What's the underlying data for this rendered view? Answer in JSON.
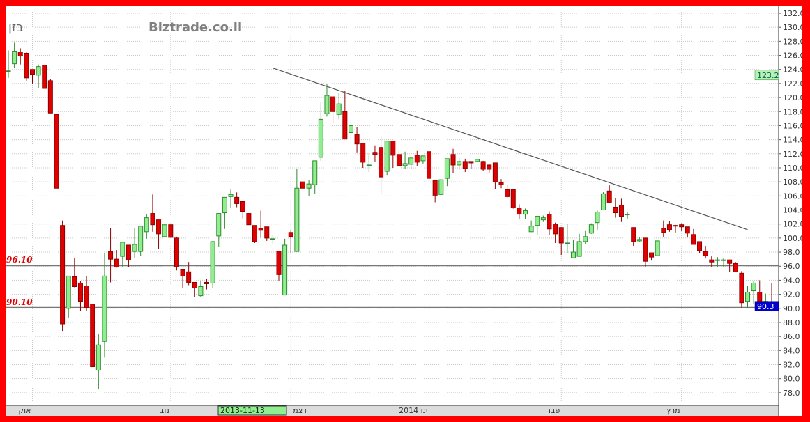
{
  "header": {
    "symbol": "בזן",
    "brand": "Biztrade.co.il"
  },
  "colors": {
    "up_fill": "#90ee90",
    "up_stroke": "#2e8b2e",
    "down_fill": "#e00000",
    "down_stroke": "#8b0000",
    "frame": "#ff0000",
    "last_price_tag": "#0000cc",
    "high_tag": "#b8f0b8",
    "level_label": "#e00000"
  },
  "chart_data": {
    "type": "candlestick",
    "ylim": [
      77,
      132.5
    ],
    "y_ticks": [
      "78.0",
      "80.0",
      "82.0",
      "84.0",
      "86.0",
      "88.0",
      "90.0",
      "92.0",
      "94.0",
      "96.0",
      "98.0",
      "100.0",
      "102.0",
      "104.0",
      "106.0",
      "108.0",
      "110.0",
      "112.0",
      "114.0",
      "116.0",
      "118.0",
      "120.0",
      "122.0",
      "124.0",
      "126.0",
      "128.0",
      "130.0",
      "132.0"
    ],
    "x_labels": [
      {
        "label": "אוק",
        "index": 4
      },
      {
        "label": "נוב",
        "index": 27
      },
      {
        "label": "דצמ",
        "index": 47
      },
      {
        "label": "2014 ינו",
        "index": 70
      },
      {
        "label": "פבר",
        "index": 92
      },
      {
        "label": "מרץ",
        "index": 112
      }
    ],
    "cursor_date": "2013-11-13",
    "levels": [
      {
        "value": 96.1,
        "label": "96.10"
      },
      {
        "value": 90.1,
        "label": "90.10"
      }
    ],
    "trendline": [
      {
        "index": 44,
        "value": 124.2
      },
      {
        "index": 123,
        "value": 101.2
      }
    ],
    "tags": [
      {
        "value": 123.2,
        "label": "123.2",
        "kind": "high"
      },
      {
        "value": 90.3,
        "label": "90.3",
        "kind": "last"
      }
    ],
    "candles": [
      [
        123.8,
        126.7,
        122.8,
        123.8
      ],
      [
        124.8,
        127.8,
        124.2,
        126.6
      ],
      [
        126.5,
        127.0,
        124.7,
        125.9
      ],
      [
        126.3,
        126.5,
        122.3,
        122.8
      ],
      [
        124.0,
        124.0,
        122.0,
        123.3
      ],
      [
        123.2,
        124.7,
        121.4,
        124.4
      ],
      [
        124.6,
        124.6,
        121.3,
        121.3
      ],
      [
        122.4,
        122.6,
        117.8,
        117.8
      ],
      [
        117.6,
        117.6,
        107.1,
        107.1
      ],
      [
        101.8,
        102.5,
        86.7,
        87.8
      ],
      [
        90.0,
        94.6,
        88.7,
        94.6
      ],
      [
        94.5,
        97.2,
        93.0,
        93.1
      ],
      [
        93.6,
        93.9,
        89.6,
        91.0
      ],
      [
        93.2,
        94.6,
        89.6,
        90.1
      ],
      [
        90.6,
        90.6,
        81.7,
        81.7
      ],
      [
        81.2,
        86.3,
        78.5,
        84.8
      ],
      [
        85.3,
        97.9,
        83.0,
        94.6
      ],
      [
        98.1,
        101.4,
        93.7,
        97.0
      ],
      [
        97.0,
        98.3,
        95.8,
        95.9
      ],
      [
        97.4,
        99.5,
        95.9,
        99.4
      ],
      [
        99.0,
        99.0,
        95.9,
        96.9
      ],
      [
        98.1,
        101.4,
        97.2,
        99.1
      ],
      [
        98.1,
        101.7,
        97.5,
        101.7
      ],
      [
        100.9,
        103.4,
        99.9,
        102.9
      ],
      [
        103.5,
        106.2,
        100.9,
        101.9
      ],
      [
        102.6,
        102.6,
        98.4,
        100.6
      ],
      [
        100.2,
        101.9,
        100.2,
        101.9
      ],
      [
        101.9,
        101.9,
        100.1,
        100.1
      ],
      [
        100.0,
        100.2,
        95.4,
        95.9
      ],
      [
        95.5,
        95.5,
        92.9,
        94.6
      ],
      [
        95.2,
        96.6,
        93.3,
        93.7
      ],
      [
        93.7,
        93.7,
        91.6,
        92.9
      ],
      [
        91.8,
        93.9,
        91.6,
        93.1
      ],
      [
        93.7,
        94.2,
        92.7,
        93.5
      ],
      [
        93.6,
        99.5,
        92.9,
        99.5
      ],
      [
        100.3,
        103.5,
        98.8,
        103.5
      ],
      [
        103.6,
        105.8,
        101.3,
        105.8
      ],
      [
        105.9,
        106.9,
        104.3,
        106.2
      ],
      [
        105.8,
        106.5,
        104.4,
        104.9
      ],
      [
        105.2,
        105.2,
        102.8,
        103.8
      ],
      [
        103.5,
        103.5,
        101.9,
        101.9
      ],
      [
        101.8,
        101.8,
        99.3,
        99.5
      ],
      [
        101.4,
        103.9,
        100.0,
        101.1
      ],
      [
        101.6,
        101.6,
        99.6,
        100.0
      ],
      [
        99.9,
        100.4,
        99.2,
        99.9
      ],
      [
        98.1,
        98.1,
        93.9,
        94.8
      ],
      [
        91.9,
        99.9,
        91.9,
        99.0
      ],
      [
        100.8,
        101.1,
        97.9,
        100.2
      ],
      [
        98.1,
        109.8,
        98.1,
        107.1
      ],
      [
        108.0,
        108.5,
        105.5,
        107.1
      ],
      [
        107.1,
        108.3,
        106.0,
        107.7
      ],
      [
        107.6,
        111.0,
        106.3,
        111.0
      ],
      [
        111.5,
        119.3,
        111.0,
        116.9
      ],
      [
        117.7,
        122.0,
        117.3,
        120.3
      ],
      [
        120.1,
        120.1,
        116.3,
        118.0
      ],
      [
        117.6,
        120.7,
        116.9,
        119.1
      ],
      [
        118.0,
        121.0,
        114.1,
        114.1
      ],
      [
        115.0,
        116.9,
        113.9,
        116.0
      ],
      [
        114.7,
        115.8,
        112.2,
        113.4
      ],
      [
        113.5,
        113.5,
        110.0,
        110.8
      ],
      [
        110.3,
        112.2,
        109.4,
        110.4
      ],
      [
        112.2,
        113.2,
        110.9,
        111.9
      ],
      [
        112.9,
        114.4,
        106.3,
        108.7
      ],
      [
        109.5,
        113.8,
        108.9,
        113.8
      ],
      [
        113.8,
        113.8,
        110.0,
        111.8
      ],
      [
        111.9,
        112.6,
        110.3,
        110.3
      ],
      [
        110.3,
        112.3,
        109.9,
        110.6
      ],
      [
        110.5,
        111.4,
        109.9,
        111.4
      ],
      [
        111.8,
        112.4,
        110.2,
        110.8
      ],
      [
        111.0,
        111.7,
        110.6,
        111.7
      ],
      [
        112.3,
        112.3,
        107.9,
        108.5
      ],
      [
        108.2,
        108.2,
        105.1,
        106.1
      ],
      [
        106.2,
        108.3,
        106.2,
        108.3
      ],
      [
        108.5,
        111.3,
        107.4,
        111.3
      ],
      [
        111.9,
        112.7,
        109.3,
        110.4
      ],
      [
        110.4,
        111.4,
        109.7,
        110.9
      ],
      [
        110.9,
        111.3,
        109.4,
        109.9
      ],
      [
        110.9,
        110.9,
        109.9,
        110.7
      ],
      [
        110.9,
        111.4,
        110.2,
        111.2
      ],
      [
        110.9,
        111.0,
        109.6,
        109.8
      ],
      [
        110.4,
        110.6,
        109.2,
        109.8
      ],
      [
        110.7,
        110.7,
        107.0,
        108.0
      ],
      [
        107.9,
        108.4,
        107.1,
        107.6
      ],
      [
        106.9,
        107.6,
        105.6,
        105.9
      ],
      [
        106.9,
        106.9,
        104.2,
        104.3
      ],
      [
        104.3,
        104.8,
        102.7,
        103.4
      ],
      [
        103.4,
        104.2,
        102.7,
        103.9
      ],
      [
        100.9,
        102.5,
        100.9,
        101.7
      ],
      [
        101.8,
        103.1,
        100.5,
        103.1
      ],
      [
        102.6,
        103.2,
        102.3,
        102.9
      ],
      [
        103.4,
        103.8,
        100.4,
        101.3
      ],
      [
        102.0,
        102.2,
        99.3,
        100.6
      ],
      [
        101.5,
        101.5,
        97.6,
        99.3
      ],
      [
        99.3,
        102.0,
        97.9,
        99.3
      ],
      [
        97.2,
        99.8,
        97.2,
        98.0
      ],
      [
        97.4,
        100.6,
        97.4,
        99.5
      ],
      [
        99.5,
        101.0,
        99.2,
        100.2
      ],
      [
        100.7,
        102.1,
        100.6,
        101.9
      ],
      [
        102.2,
        103.9,
        101.2,
        103.7
      ],
      [
        104.0,
        106.6,
        104.0,
        106.3
      ],
      [
        106.7,
        107.5,
        105.1,
        105.1
      ],
      [
        104.4,
        105.7,
        102.9,
        103.6
      ],
      [
        104.7,
        105.6,
        102.3,
        103.1
      ],
      [
        103.4,
        103.7,
        102.7,
        103.4
      ],
      [
        101.5,
        101.5,
        98.9,
        99.5
      ],
      [
        99.6,
        100.1,
        99.4,
        99.8
      ],
      [
        100.0,
        100.0,
        95.9,
        96.7
      ],
      [
        97.9,
        97.9,
        96.8,
        97.3
      ],
      [
        97.5,
        99.6,
        97.5,
        99.6
      ],
      [
        101.4,
        102.5,
        100.1,
        100.8
      ],
      [
        101.9,
        102.4,
        100.9,
        101.2
      ],
      [
        101.8,
        101.9,
        100.8,
        101.7
      ],
      [
        101.9,
        102.1,
        101.0,
        101.6
      ],
      [
        101.6,
        101.6,
        100.1,
        100.7
      ],
      [
        100.5,
        101.3,
        99.1,
        99.1
      ],
      [
        99.5,
        99.5,
        97.8,
        98.2
      ],
      [
        98.1,
        98.9,
        97.1,
        97.5
      ],
      [
        96.9,
        97.4,
        95.9,
        96.6
      ],
      [
        96.9,
        97.3,
        95.9,
        96.9
      ],
      [
        96.8,
        97.2,
        95.9,
        96.9
      ],
      [
        96.9,
        96.9,
        95.2,
        96.4
      ],
      [
        96.4,
        96.6,
        95.2,
        95.2
      ],
      [
        95.0,
        95.3,
        90.1,
        90.8
      ],
      [
        91.0,
        93.2,
        90.1,
        92.3
      ],
      [
        92.5,
        93.9,
        90.7,
        93.6
      ],
      [
        92.3,
        94.0,
        91.0,
        91.0
      ],
      [
        90.7,
        92.1,
        90.1,
        91.0
      ],
      [
        90.9,
        93.6,
        90.1,
        90.3
      ]
    ]
  }
}
